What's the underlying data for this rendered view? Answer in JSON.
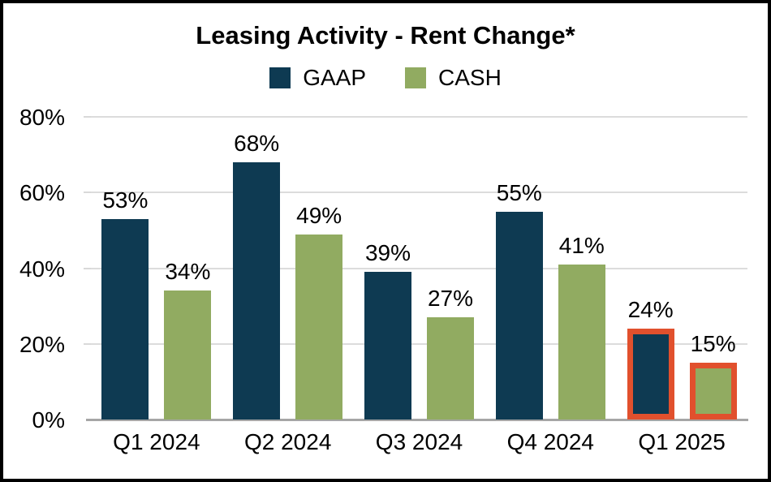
{
  "chart": {
    "title": "Leasing Activity - Rent Change*"
  },
  "chart_data": {
    "type": "bar",
    "title": "Leasing Activity - Rent Change*",
    "categories": [
      "Q1 2024",
      "Q2 2024",
      "Q3 2024",
      "Q4 2024",
      "Q1 2025"
    ],
    "series": [
      {
        "name": "GAAP",
        "color": "#0E3A52",
        "values": [
          53,
          68,
          39,
          55,
          24
        ]
      },
      {
        "name": "CASH",
        "color": "#91AB61",
        "values": [
          34,
          49,
          27,
          41,
          15
        ]
      }
    ],
    "data_labels": [
      [
        "53%",
        "68%",
        "39%",
        "55%",
        "24%"
      ],
      [
        "34%",
        "49%",
        "27%",
        "41%",
        "15%"
      ]
    ],
    "highlighted_category": "Q1 2025",
    "highlight_color": "#E1502D",
    "ylim": [
      0,
      80
    ],
    "yticks": [
      0,
      20,
      40,
      60,
      80
    ],
    "ytick_labels": [
      "0%",
      "20%",
      "40%",
      "60%",
      "80%"
    ],
    "grid": true,
    "legend_position": "top",
    "gridline_color": "#DCDCDC",
    "axis_line_color": "#A6A6A6"
  }
}
